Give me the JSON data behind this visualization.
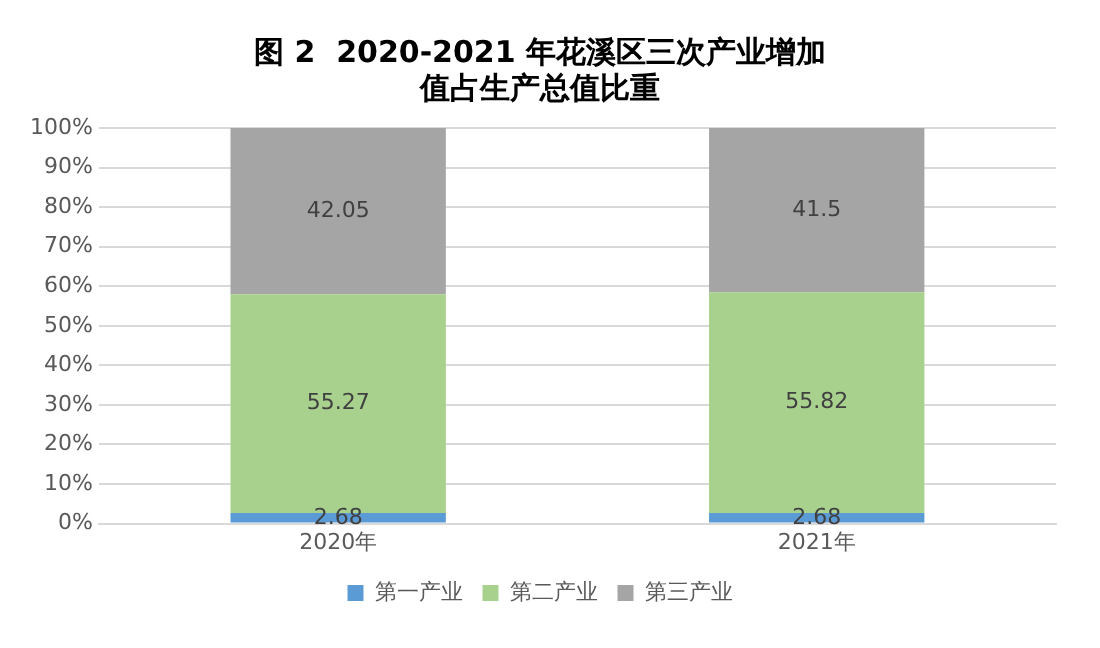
{
  "chart_data": {
    "type": "bar",
    "stacked": true,
    "title": "图 2  2020-2021 年花溪区三次产业增加值占生产总值比重",
    "categories": [
      "2020年",
      "2021年"
    ],
    "series": [
      {
        "name": "第一产业",
        "color": "#5b9bd5",
        "values": [
          2.68,
          2.68
        ]
      },
      {
        "name": "第二产业",
        "color": "#a9d18e",
        "values": [
          55.27,
          55.82
        ]
      },
      {
        "name": "第三产业",
        "color": "#a5a5a5",
        "values": [
          42.05,
          41.5
        ]
      }
    ],
    "ylim": [
      0,
      100
    ],
    "yticks": [
      {
        "value": 0,
        "label": "0%"
      },
      {
        "value": 10,
        "label": "10%"
      },
      {
        "value": 20,
        "label": "20%"
      },
      {
        "value": 30,
        "label": "30%"
      },
      {
        "value": 40,
        "label": "40%"
      },
      {
        "value": 50,
        "label": "50%"
      },
      {
        "value": 60,
        "label": "60%"
      },
      {
        "value": 70,
        "label": "70%"
      },
      {
        "value": 80,
        "label": "80%"
      },
      {
        "value": 90,
        "label": "90%"
      },
      {
        "value": 100,
        "label": "100%"
      }
    ],
    "grid": "y",
    "legend": "bottom",
    "data_labels": true
  }
}
